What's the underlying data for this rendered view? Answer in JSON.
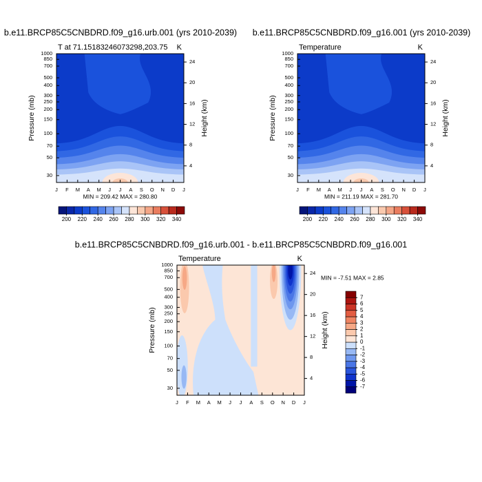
{
  "chart_data": [
    {
      "type": "contour",
      "title": "b.e11.BRCP85C5CNBDRD.f09_g16.urb.001 (yrs 2010-2039)",
      "subtitle": "T at 71.15183246073298,203.75",
      "units": "K",
      "ylabel": "Pressure (mb)",
      "y2label": "Height (km)",
      "stats": "MIN = 209.42 MAX = 280.80",
      "categories": [
        "J",
        "F",
        "M",
        "A",
        "M",
        "J",
        "J",
        "A",
        "S",
        "O",
        "N",
        "D",
        "J"
      ],
      "ylim": [
        1000,
        24.6
      ],
      "log_y": true,
      "yticks": [
        30,
        50,
        70,
        100,
        150,
        200,
        250,
        300,
        400,
        500,
        700,
        850,
        1000
      ],
      "y2lim": [
        0.8,
        25.6
      ],
      "y2ticks": [
        24,
        20,
        16,
        12,
        8,
        4
      ],
      "colorbar": {
        "orientation": "horizontal",
        "lim": [
          190,
          350
        ],
        "ticks": [
          200,
          220,
          240,
          260,
          280,
          300,
          320,
          340
        ],
        "colors": [
          "#05157a",
          "#0a27a8",
          "#0c3bc9",
          "#1a52dc",
          "#3168e4",
          "#5584ec",
          "#7da3f2",
          "#a9c4f7",
          "#d5e3fb",
          "#fce5d8",
          "#f9c9ae",
          "#f4a687",
          "#ea7d5f",
          "#d8503a",
          "#b92a1d",
          "#8c0a08"
        ]
      }
    },
    {
      "type": "contour",
      "title": "b.e11.BRCP85C5CNBDRD.f09_g16.001 (yrs 2010-2039)",
      "subtitle": "Temperature",
      "units": "K",
      "ylabel": "Pressure (mb)",
      "y2label": "Height (km)",
      "stats": "MIN = 211.19 MAX = 281.70",
      "categories": [
        "J",
        "F",
        "M",
        "A",
        "M",
        "J",
        "J",
        "A",
        "S",
        "O",
        "N",
        "D",
        "J"
      ],
      "ylim": [
        1000,
        24.6
      ],
      "log_y": true,
      "yticks": [
        30,
        50,
        70,
        100,
        150,
        200,
        250,
        300,
        400,
        500,
        700,
        850,
        1000
      ],
      "y2lim": [
        0.8,
        25.6
      ],
      "y2ticks": [
        24,
        20,
        16,
        12,
        8,
        4
      ],
      "colorbar": {
        "orientation": "horizontal",
        "lim": [
          190,
          350
        ],
        "ticks": [
          200,
          220,
          240,
          260,
          280,
          300,
          320,
          340
        ],
        "colors": [
          "#05157a",
          "#0a27a8",
          "#0c3bc9",
          "#1a52dc",
          "#3168e4",
          "#5584ec",
          "#7da3f2",
          "#a9c4f7",
          "#d5e3fb",
          "#fce5d8",
          "#f9c9ae",
          "#f4a687",
          "#ea7d5f",
          "#d8503a",
          "#b92a1d",
          "#8c0a08"
        ]
      }
    },
    {
      "type": "contour",
      "title": "b.e11.BRCP85C5CNBDRD.f09_g16.urb.001 - b.e11.BRCP85C5CNBDRD.f09_g16.001",
      "subtitle": "Temperature",
      "units": "K",
      "ylabel": "Pressure (mb)",
      "y2label": "Height (km)",
      "stats": "MIN =  -7.51 MAX =   2.85",
      "categories": [
        "J",
        "F",
        "M",
        "A",
        "M",
        "J",
        "J",
        "A",
        "S",
        "O",
        "N",
        "D",
        "J"
      ],
      "ylim": [
        1000,
        24.6
      ],
      "log_y": true,
      "yticks": [
        30,
        50,
        70,
        100,
        150,
        200,
        250,
        300,
        400,
        500,
        700,
        850,
        1000
      ],
      "y2lim": [
        0.8,
        25.6
      ],
      "y2ticks": [
        24,
        20,
        16,
        12,
        8,
        4
      ],
      "colorbar": {
        "orientation": "vertical",
        "lim": [
          -8,
          8
        ],
        "ticks": [
          -7,
          -6,
          -5,
          -4,
          -3,
          -2,
          -1,
          0,
          1,
          2,
          3,
          4,
          5,
          6,
          7
        ],
        "colors": [
          "#00007a",
          "#0015a8",
          "#1034cc",
          "#2a55dc",
          "#4a76e6",
          "#6e97ee",
          "#97b8f4",
          "#cde0fb",
          "#fde5d6",
          "#fbc9ad",
          "#f6a886",
          "#ef8462",
          "#e35d42",
          "#cb3426",
          "#ad1510",
          "#850000"
        ]
      }
    }
  ]
}
